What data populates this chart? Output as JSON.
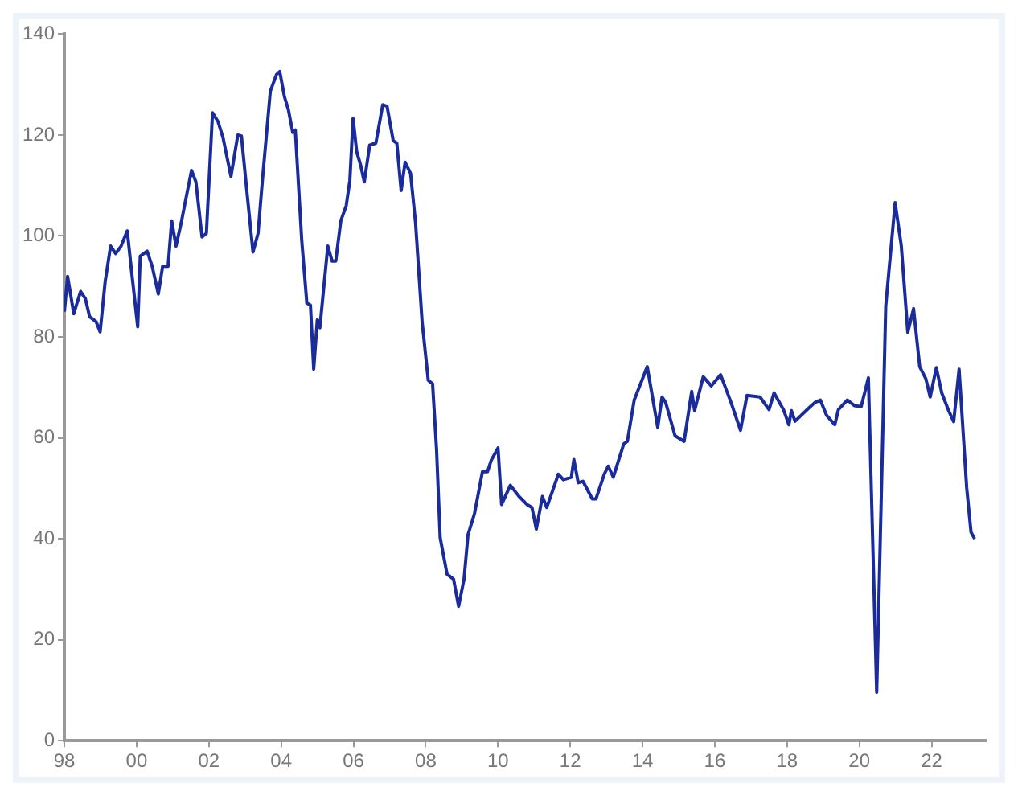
{
  "chart_data": {
    "type": "line",
    "x": [
      1998.0,
      1998.09,
      1998.26,
      1998.45,
      1998.58,
      1998.7,
      1998.88,
      1998.99,
      1999.13,
      1999.28,
      1999.42,
      1999.57,
      1999.74,
      1999.86,
      2000.03,
      2000.1,
      2000.29,
      2000.43,
      2000.6,
      2000.72,
      2000.87,
      2000.97,
      2001.09,
      2001.23,
      2001.38,
      2001.52,
      2001.64,
      2001.81,
      2001.93,
      2002.1,
      2002.25,
      2002.39,
      2002.61,
      2002.8,
      2002.9,
      2003.04,
      2003.22,
      2003.36,
      2003.48,
      2003.7,
      2003.87,
      2003.96,
      2004.09,
      2004.2,
      2004.32,
      2004.39,
      2004.57,
      2004.71,
      2004.81,
      2004.9,
      2005.0,
      2005.07,
      2005.29,
      2005.41,
      2005.51,
      2005.65,
      2005.8,
      2005.9,
      2005.99,
      2006.09,
      2006.2,
      2006.3,
      2006.45,
      2006.62,
      2006.81,
      2006.93,
      2007.1,
      2007.2,
      2007.32,
      2007.43,
      2007.58,
      2007.72,
      2007.9,
      2008.07,
      2008.19,
      2008.3,
      2008.4,
      2008.59,
      2008.77,
      2008.91,
      2009.06,
      2009.17,
      2009.35,
      2009.57,
      2009.71,
      2009.81,
      2010.0,
      2010.1,
      2010.34,
      2010.58,
      2010.8,
      2010.94,
      2011.06,
      2011.23,
      2011.35,
      2011.67,
      2011.81,
      2012.03,
      2012.1,
      2012.22,
      2012.35,
      2012.61,
      2012.71,
      2012.94,
      2013.05,
      2013.19,
      2013.48,
      2013.58,
      2013.77,
      2014.13,
      2014.42,
      2014.54,
      2014.64,
      2014.9,
      2015.15,
      2015.36,
      2015.44,
      2015.68,
      2015.9,
      2016.16,
      2016.45,
      2016.71,
      2016.89,
      2017.25,
      2017.5,
      2017.64,
      2017.9,
      2018.05,
      2018.12,
      2018.22,
      2018.6,
      2018.77,
      2018.92,
      2019.09,
      2019.32,
      2019.42,
      2019.67,
      2019.86,
      2020.05,
      2020.25,
      2020.48,
      2020.73,
      2020.99,
      2021.16,
      2021.34,
      2021.5,
      2021.67,
      2021.84,
      2021.96,
      2022.13,
      2022.28,
      2022.47,
      2022.61,
      2022.76,
      2022.97,
      2023.09,
      2023.19
    ],
    "values": [
      85,
      92,
      84.6,
      89,
      87.6,
      84,
      83,
      81,
      91,
      98,
      96.5,
      98,
      101,
      93,
      82,
      96,
      97,
      94,
      88.5,
      94,
      94,
      103,
      98,
      102.5,
      108,
      113,
      110.7,
      99.8,
      100.5,
      124.4,
      122.7,
      119.5,
      111.8,
      120,
      119.8,
      109.6,
      96.8,
      100.5,
      111,
      128.7,
      132,
      132.6,
      127.6,
      125,
      120.5,
      121,
      99,
      86.7,
      86.3,
      73.6,
      83.4,
      81.8,
      98,
      95,
      95,
      103,
      106,
      111,
      123.3,
      116.7,
      114,
      110.7,
      118,
      118.4,
      126,
      125.7,
      118.9,
      118.4,
      109,
      114.6,
      112.4,
      102.5,
      83,
      71.4,
      70.7,
      57.7,
      40.2,
      33,
      32,
      26.6,
      32,
      40.8,
      45,
      53.3,
      53.3,
      55.5,
      58,
      46.8,
      50.6,
      48.4,
      46.8,
      46.2,
      41.9,
      48.4,
      46.2,
      52.8,
      51.7,
      52.2,
      55.7,
      51.1,
      51.4,
      47.9,
      47.9,
      52.8,
      54.4,
      52.2,
      58.8,
      59.3,
      67.5,
      74.1,
      62.1,
      68.1,
      67,
      60.4,
      59.3,
      69.2,
      65.4,
      72.1,
      70.3,
      72.5,
      67,
      61.5,
      68.4,
      68.1,
      65.6,
      68.9,
      65.6,
      62.6,
      65.4,
      63.3,
      65.9,
      67,
      67.5,
      64.5,
      62.6,
      65.6,
      67.5,
      66.4,
      66.2,
      71.9,
      9.6,
      86.1,
      106.6,
      98.1,
      80.9,
      85.6,
      74.1,
      71.7,
      68.1,
      73.9,
      68.9,
      65.4,
      63.2,
      73.6,
      50.1,
      41.3,
      40
    ],
    "color": "#1a2b9c",
    "xlim": [
      1998,
      2023.5
    ],
    "xticks": [
      {
        "value": 1998,
        "label": "98"
      },
      {
        "value": 2000,
        "label": "00"
      },
      {
        "value": 2002,
        "label": "02"
      },
      {
        "value": 2004,
        "label": "04"
      },
      {
        "value": 2006,
        "label": "06"
      },
      {
        "value": 2008,
        "label": "08"
      },
      {
        "value": 2010,
        "label": "10"
      },
      {
        "value": 2012,
        "label": "12"
      },
      {
        "value": 2014,
        "label": "14"
      },
      {
        "value": 2016,
        "label": "16"
      },
      {
        "value": 2018,
        "label": "18"
      },
      {
        "value": 2020,
        "label": "20"
      },
      {
        "value": 2022,
        "label": "22"
      }
    ],
    "ylim": [
      0,
      140
    ],
    "yticks": [
      0,
      20,
      40,
      60,
      80,
      100,
      120,
      140
    ]
  }
}
